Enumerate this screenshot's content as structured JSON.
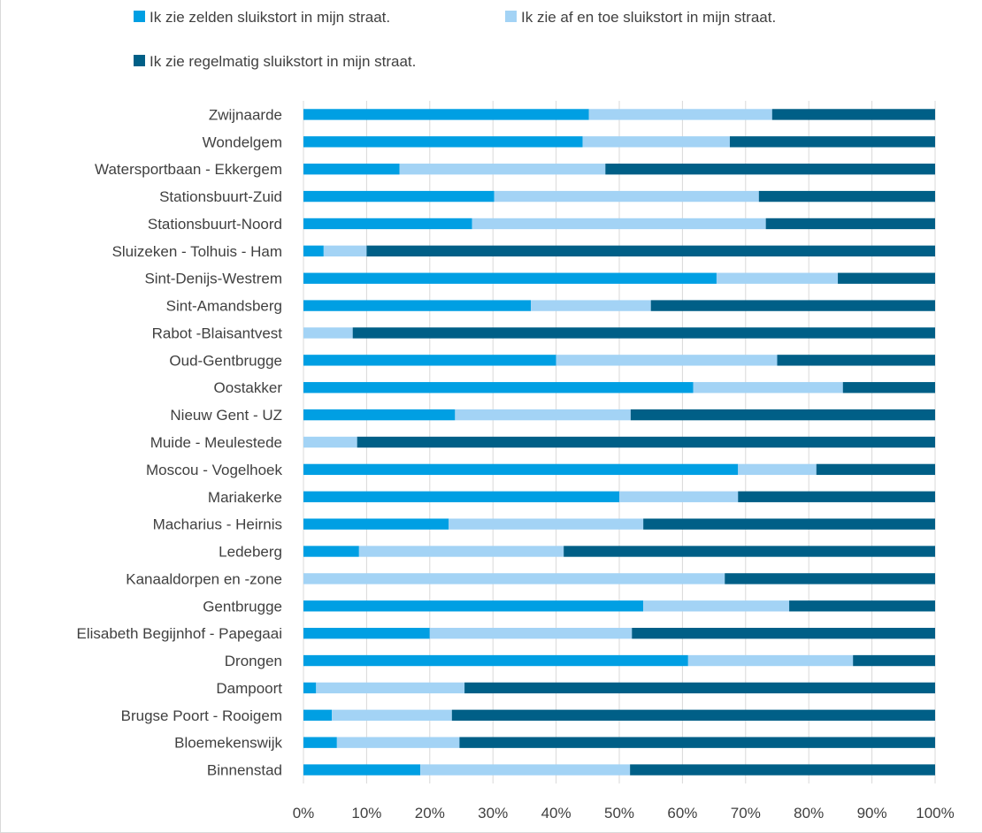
{
  "chart_data": {
    "type": "bar",
    "orientation": "horizontal",
    "stacked": true,
    "title": "",
    "xlabel": "",
    "ylabel": "",
    "xlim": [
      0,
      100
    ],
    "x_ticks": [
      "0%",
      "10%",
      "20%",
      "30%",
      "40%",
      "50%",
      "60%",
      "70%",
      "80%",
      "90%",
      "100%"
    ],
    "grid": true,
    "legend_position": "top",
    "categories": [
      "Zwijnaarde",
      "Wondelgem",
      "Watersportbaan - Ekkergem",
      "Stationsbuurt-Zuid",
      "Stationsbuurt-Noord",
      "Sluizeken - Tolhuis - Ham",
      "Sint-Denijs-Westrem",
      "Sint-Amandsberg",
      "Rabot  -Blaisantvest",
      "Oud-Gentbrugge",
      "Oostakker",
      "Nieuw Gent - UZ",
      "Muide - Meulestede",
      "Moscou - Vogelhoek",
      "Mariakerke",
      "Macharius - Heirnis",
      "Ledeberg",
      "Kanaaldorpen en -zone",
      "Gentbrugge",
      "Elisabeth Begijnhof - Papegaai",
      "Drongen",
      "Dampoort",
      "Brugse Poort - Rooigem",
      "Bloemekenswijk",
      "Binnenstad"
    ],
    "series": [
      {
        "name": "Ik zie zelden sluikstort in mijn straat.",
        "color": "#009fe3",
        "values": [
          45.2,
          44.2,
          15.2,
          30.2,
          26.7,
          3.2,
          65.4,
          36.0,
          0.0,
          40.0,
          61.7,
          24.0,
          0.0,
          68.8,
          50.0,
          23.0,
          8.8,
          0.0,
          53.8,
          20.0,
          60.9,
          2.0,
          4.5,
          5.3,
          18.5
        ]
      },
      {
        "name": "Ik zie af en toe sluikstort in mijn straat.",
        "color": "#a3d3f5",
        "values": [
          29.0,
          23.3,
          32.6,
          41.9,
          46.5,
          6.8,
          19.2,
          19.0,
          7.8,
          35.0,
          23.7,
          27.8,
          8.5,
          12.4,
          18.8,
          30.8,
          32.4,
          66.7,
          23.1,
          32.0,
          26.1,
          23.5,
          19.0,
          19.4,
          33.2
        ]
      },
      {
        "name": "Ik zie regelmatig sluikstort in mijn straat.",
        "color": "#005f87",
        "values": [
          25.8,
          32.5,
          52.2,
          27.9,
          26.8,
          90.0,
          15.4,
          45.0,
          92.2,
          25.0,
          14.6,
          48.2,
          91.5,
          18.8,
          31.2,
          46.2,
          58.8,
          33.3,
          23.1,
          48.0,
          13.0,
          74.5,
          76.5,
          75.3,
          48.3
        ]
      }
    ]
  }
}
